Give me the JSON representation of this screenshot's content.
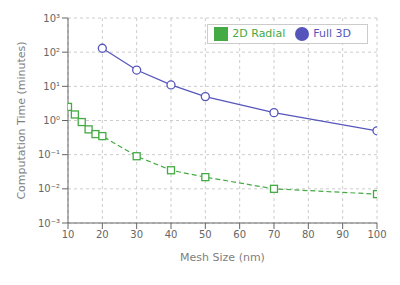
{
  "chart_data": {
    "type": "line",
    "xlabel": "Mesh Size (nm)",
    "ylabel": "Computation Time (minutes)",
    "series": [
      {
        "name": "Full 3D",
        "color": "#5555bb",
        "marker": "o",
        "line_style": "solid",
        "x": [
          20,
          30,
          40,
          50,
          70,
          100
        ],
        "values": [
          130,
          30,
          11,
          5.0,
          1.7,
          0.5
        ]
      },
      {
        "name": "2D Radial",
        "color": "#44aa44",
        "marker": "s",
        "line_style": "dashed",
        "x": [
          10,
          12,
          14,
          16,
          18,
          20,
          30,
          40,
          50,
          70,
          100
        ],
        "values": [
          2.5,
          1.5,
          0.9,
          0.55,
          0.4,
          0.35,
          0.09,
          0.035,
          0.022,
          0.01,
          0.007
        ]
      }
    ],
    "xlim": [
      10,
      100
    ],
    "xticks": [
      10,
      20,
      30,
      40,
      50,
      60,
      70,
      80,
      90,
      100
    ],
    "ylim": [
      0.001,
      1000
    ],
    "yticks": [
      {
        "value": 0.001,
        "label": "10⁻³"
      },
      {
        "value": 0.01,
        "label": "10⁻²"
      },
      {
        "value": 0.1,
        "label": "10⁻¹"
      },
      {
        "value": 1,
        "label": "10⁰"
      },
      {
        "value": 10,
        "label": "10¹"
      },
      {
        "value": 100,
        "label": "10²"
      },
      {
        "value": 1000,
        "label": "10³"
      }
    ],
    "log": "y",
    "grid": true,
    "legend": "upper right"
  }
}
